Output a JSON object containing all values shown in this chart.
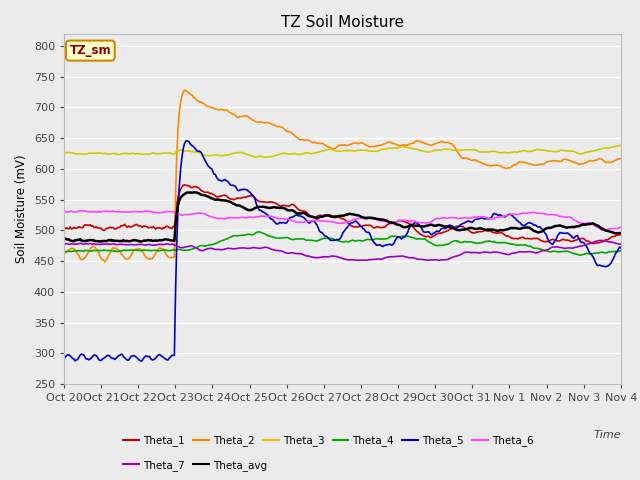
{
  "title": "TZ Soil Moisture",
  "ylabel": "Soil Moisture (mV)",
  "xlabel": "Time",
  "ylim": [
    250,
    820
  ],
  "yticks": [
    250,
    300,
    350,
    400,
    450,
    500,
    550,
    600,
    650,
    700,
    750,
    800
  ],
  "bg_color": "#ebebeb",
  "legend_label": "TZ_sm",
  "colors": {
    "Theta_1": "#cc0000",
    "Theta_2": "#ff8800",
    "Theta_3": "#cccc00",
    "Theta_4": "#00aa00",
    "Theta_5": "#0000cc",
    "Theta_6": "#ff44ff",
    "Theta_7": "#9900cc",
    "Theta_avg": "#000000"
  },
  "x_tick_labels": [
    "Oct 20",
    "Oct 21",
    "Oct 22",
    "Oct 23",
    "Oct 24",
    "Oct 25",
    "Oct 26",
    "Oct 27",
    "Oct 28",
    "Oct 29",
    "Oct 30",
    "Oct 31",
    "Nov 1",
    "Nov 2",
    "Nov 3",
    "Nov 4"
  ],
  "legend_row1": [
    "Theta_1",
    "Theta_2",
    "Theta_3",
    "Theta_4",
    "Theta_5",
    "Theta_6"
  ],
  "legend_row2": [
    "Theta_7",
    "Theta_avg"
  ]
}
